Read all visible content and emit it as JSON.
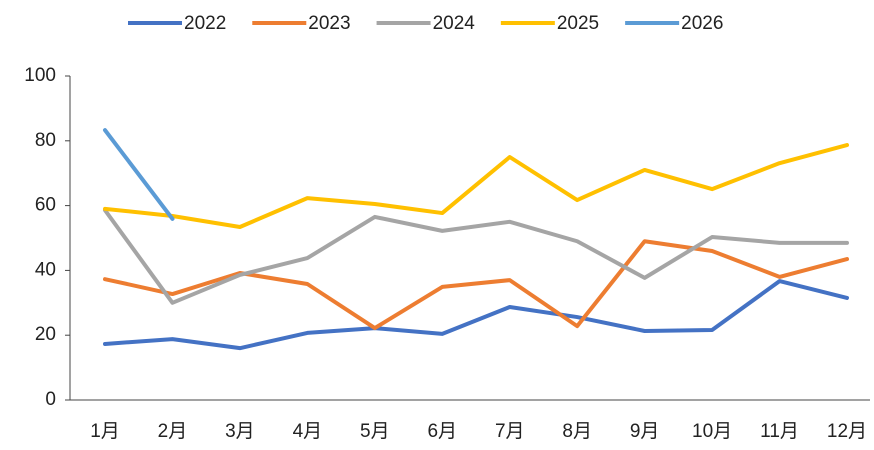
{
  "chart_data": {
    "type": "line",
    "categories": [
      "1月",
      "2月",
      "3月",
      "4月",
      "5月",
      "6月",
      "7月",
      "8月",
      "9月",
      "10月",
      "11月",
      "12月"
    ],
    "series": [
      {
        "name": "2022",
        "color": "#4472c4",
        "values": [
          17.3,
          18.8,
          16,
          20.7,
          22.2,
          20.4,
          28.7,
          25.6,
          21.3,
          21.6,
          36.7,
          31.5
        ]
      },
      {
        "name": "2023",
        "color": "#ed7d31",
        "values": [
          37.3,
          32.7,
          39.2,
          35.8,
          22.2,
          34.9,
          37,
          22.8,
          49,
          46,
          38,
          43.5
        ]
      },
      {
        "name": "2024",
        "color": "#a5a5a5",
        "values": [
          58.6,
          30,
          38.6,
          43.8,
          56.5,
          52.2,
          55,
          49,
          37.7,
          50.3,
          48.5,
          48.5
        ]
      },
      {
        "name": "2025",
        "color": "#ffc000",
        "values": [
          59,
          56.8,
          53.4,
          62.3,
          60.5,
          57.7,
          75,
          61.7,
          71,
          65.1,
          73.1,
          78.7
        ]
      },
      {
        "name": "2026",
        "color": "#5b9bd5",
        "values": [
          83.3,
          55.9,
          null,
          null,
          null,
          null,
          null,
          null,
          null,
          null,
          null,
          null
        ]
      }
    ],
    "ylim": [
      0,
      100
    ],
    "yticks": [
      0,
      20,
      40,
      60,
      80,
      100
    ],
    "grid": false,
    "legend": "top"
  }
}
